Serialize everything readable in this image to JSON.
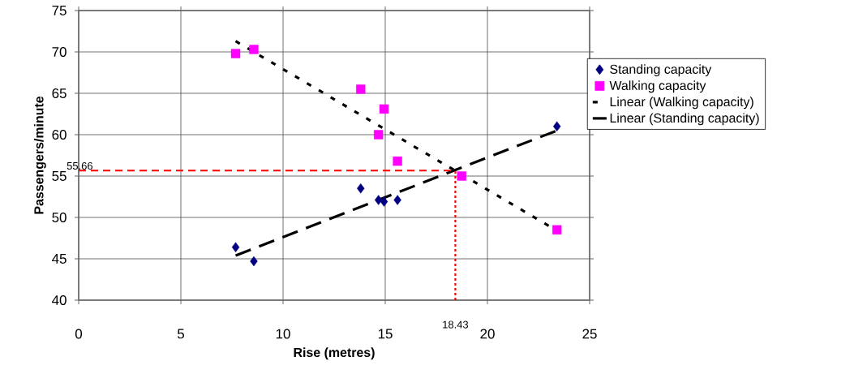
{
  "chart_data": {
    "type": "scatter",
    "xlabel": "Rise (metres)",
    "ylabel": "Passengers/minute",
    "xlim": [
      0,
      25
    ],
    "ylim": [
      40,
      75
    ],
    "xticks": [
      0,
      5,
      10,
      15,
      20,
      25
    ],
    "yticks": [
      40,
      45,
      50,
      55,
      60,
      65,
      70,
      75
    ],
    "grid": true,
    "legend": "right",
    "series": [
      {
        "name": "Standing capacity",
        "color": "#000080",
        "marker": "diamond",
        "x": [
          7.68,
          8.57,
          13.8,
          14.67,
          14.94,
          15.6,
          23.4
        ],
        "values": [
          46.4,
          44.7,
          53.5,
          52.1,
          51.9,
          52.1,
          61.0
        ]
      },
      {
        "name": "Walking capacity",
        "color": "#ff00ff",
        "marker": "square",
        "x": [
          7.68,
          8.57,
          13.8,
          14.94,
          14.67,
          15.6,
          18.74,
          23.4
        ],
        "values": [
          69.8,
          70.3,
          65.5,
          63.1,
          60.0,
          56.8,
          55.0,
          48.5
        ]
      },
      {
        "name": "Linear (Walking capacity)",
        "type": "line",
        "color": "#000000",
        "line_style": "dotted",
        "marker": "none",
        "x": [
          7.68,
          23.4
        ],
        "values": [
          71.3,
          48.4
        ]
      },
      {
        "name": "Linear (Standing capacity)",
        "type": "line",
        "color": "#000000",
        "line_style": "dashed",
        "marker": "none",
        "x": [
          7.68,
          23.4
        ],
        "values": [
          45.4,
          60.5
        ]
      }
    ],
    "ref_lines": [
      {
        "axis": "y",
        "value": 55.66,
        "label": "55.66",
        "color": "#ff0000",
        "line_style": "dashed"
      },
      {
        "axis": "x",
        "value": 18.43,
        "label": "18.43",
        "color": "#ff0000",
        "line_style": "dotted"
      }
    ]
  }
}
